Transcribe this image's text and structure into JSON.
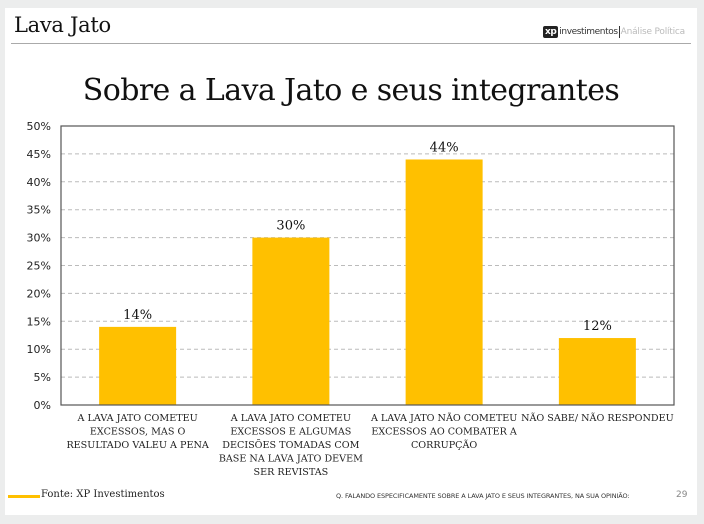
{
  "header": {
    "slide_title": "Lava Jato",
    "brand_xp": "xp",
    "brand_name": "investimentos",
    "brand_section": "Análise Política"
  },
  "footer": {
    "source": "Fonte: XP Investimentos",
    "question": "Q. FALANDO ESPECIFICAMENTE SOBRE A LAVA JATO E SEUS INTEGRANTES, NA SUA OPINIÃO:",
    "page_number": "29"
  },
  "colors": {
    "bar": "#FFC000",
    "background": "#ECEDED",
    "axis": "#555555",
    "gridline": "#BBBBBB"
  },
  "chart_data": {
    "type": "bar",
    "title": "Sobre a Lava Jato e seus integrantes",
    "xlabel": "",
    "ylabel": "",
    "ylim": [
      0,
      50
    ],
    "yticks": [
      0,
      5,
      10,
      15,
      20,
      25,
      30,
      35,
      40,
      45,
      50
    ],
    "ytick_labels": [
      "0%",
      "5%",
      "10%",
      "15%",
      "20%",
      "25%",
      "30%",
      "35%",
      "40%",
      "45%",
      "50%"
    ],
    "grid": true,
    "grid_style": "dashed",
    "legend": "none",
    "categories": [
      [
        "A LAVA JATO COMETEU",
        "EXCESSOS, MAS O",
        "RESULTADO VALEU A PENA"
      ],
      [
        "A LAVA JATO COMETEU",
        "EXCESSOS E ALGUMAS",
        "DECISÕES TOMADAS COM",
        "BASE NA LAVA  JATO DEVEM",
        "SER REVISTAS"
      ],
      [
        "A LAVA JATO NÃO COMETEU",
        "EXCESSOS AO COMBATER A",
        "CORRUPÇÃO"
      ],
      [
        "NÃO SABE/ NÃO RESPONDEU"
      ]
    ],
    "values": [
      14,
      30,
      44,
      12
    ],
    "data_labels": [
      "14%",
      "30%",
      "44%",
      "12%"
    ]
  }
}
